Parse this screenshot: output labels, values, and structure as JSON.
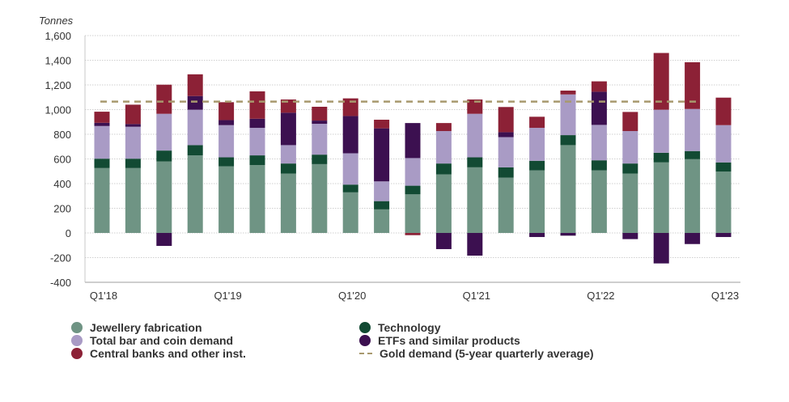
{
  "chart_data": {
    "type": "bar",
    "stacked": true,
    "ylabel": "Tonnes",
    "ylim": [
      -400,
      1600
    ],
    "yticks": [
      "-400",
      "-200",
      "0",
      "200",
      "400",
      "600",
      "800",
      "1,000",
      "1,200",
      "1,400",
      "1,600"
    ],
    "ytick_values": [
      -400,
      -200,
      0,
      200,
      400,
      600,
      800,
      1000,
      1200,
      1400,
      1600
    ],
    "grid": true,
    "legend_position": "bottom",
    "categories": [
      "Q1'18",
      "Q2'18",
      "Q3'18",
      "Q4'18",
      "Q1'19",
      "Q2'19",
      "Q3'19",
      "Q4'19",
      "Q1'20",
      "Q2'20",
      "Q3'20",
      "Q4'20",
      "Q1'21",
      "Q2'21",
      "Q3'21",
      "Q4'21",
      "Q1'22",
      "Q2'22",
      "Q3'22",
      "Q4'22",
      "Q1'23"
    ],
    "xtick_labels": [
      "Q1'18",
      "Q1'19",
      "Q1'20",
      "Q1'21",
      "Q1'22",
      "Q1'23"
    ],
    "series": [
      {
        "name": "Jewellery fabrication",
        "color": "#6f9484",
        "values": [
          526,
          526,
          580,
          629,
          541,
          550,
          482,
          558,
          329,
          191,
          313,
          475,
          532,
          449,
          508,
          712,
          508,
          482,
          572,
          598,
          497
        ]
      },
      {
        "name": "Technology",
        "color": "#124a33",
        "values": [
          76,
          76,
          88,
          83,
          72,
          79,
          81,
          77,
          63,
          67,
          70,
          88,
          81,
          83,
          77,
          81,
          81,
          81,
          78,
          66,
          75
        ]
      },
      {
        "name": "Total bar and coin demand",
        "color": "#a99bc5",
        "values": [
          265,
          259,
          298,
          287,
          261,
          223,
          149,
          250,
          254,
          160,
          224,
          263,
          353,
          245,
          267,
          330,
          287,
          263,
          349,
          341,
          302
        ]
      },
      {
        "name": "ETFs and similar products",
        "color": "#3c1050",
        "values": [
          26,
          22,
          -105,
          111,
          41,
          74,
          263,
          26,
          302,
          430,
          284,
          -131,
          -184,
          40,
          -33,
          -22,
          269,
          -50,
          -247,
          -90,
          -33
        ]
      },
      {
        "name": "Central banks and other inst.",
        "color": "#8c2136",
        "values": [
          90,
          157,
          236,
          176,
          145,
          222,
          107,
          112,
          143,
          70,
          -18,
          65,
          116,
          204,
          90,
          31,
          84,
          155,
          460,
          379,
          223
        ]
      }
    ],
    "reference_line": {
      "name": "Gold demand (5-year quarterly average)",
      "value": 1065,
      "color": "#a8996e",
      "span_categories": [
        "Q1'18",
        "Q4'22"
      ]
    }
  }
}
